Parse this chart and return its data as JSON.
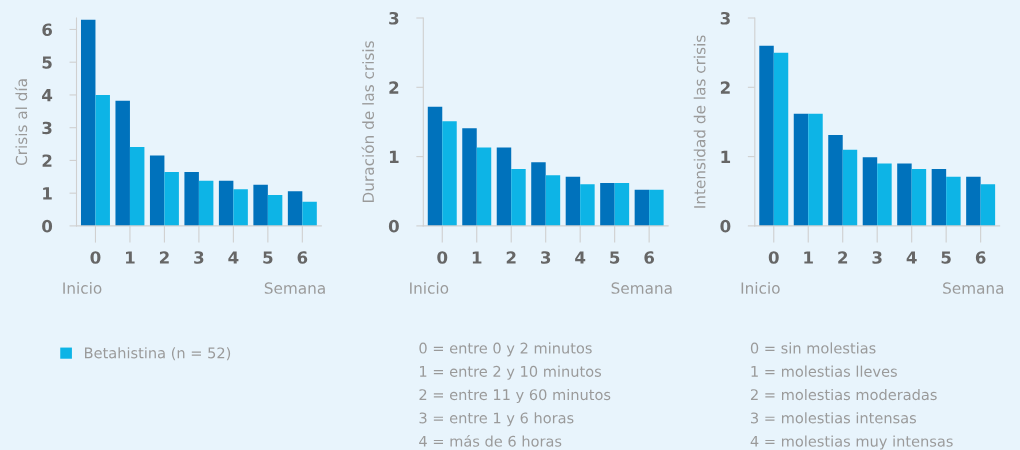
{
  "chart_data": [
    {
      "type": "bar",
      "ylabel": "Crisis al día",
      "xlabel": "Semana",
      "categories": [
        "0",
        "1",
        "2",
        "3",
        "4",
        "5",
        "6"
      ],
      "series": [
        {
          "color": "#0072bc",
          "values": [
            6.3,
            3.82,
            2.15,
            1.65,
            1.38,
            1.26,
            1.06
          ]
        },
        {
          "name": "Betahistina (n = 52)",
          "color": "#0db4e6",
          "values": [
            4.0,
            2.41,
            1.65,
            1.38,
            1.12,
            0.94,
            0.74
          ]
        }
      ],
      "ylim": [
        0,
        6.35
      ],
      "yticks": [
        0,
        1,
        2,
        3,
        4,
        5,
        6
      ],
      "legend": "bottom",
      "annotations": [
        "Inicio"
      ]
    },
    {
      "type": "bar",
      "ylabel": "Duración de las crisis",
      "xlabel": "Semana",
      "categories": [
        "0",
        "1",
        "2",
        "3",
        "4",
        "5",
        "6"
      ],
      "series": [
        {
          "color": "#0072bc",
          "values": [
            1.72,
            1.41,
            1.13,
            0.92,
            0.71,
            0.62,
            0.52
          ]
        },
        {
          "color": "#0db4e6",
          "values": [
            1.51,
            1.13,
            0.82,
            0.73,
            0.6,
            0.62,
            0.52
          ]
        }
      ],
      "ylim": [
        0,
        3
      ],
      "yticks": [
        0,
        1,
        2,
        3
      ],
      "annotations": [
        "Inicio",
        "0 = entre 0 y 2 minutos",
        "1 = entre 2 y 10 minutos",
        "2 = entre 11 y 60 minutos",
        "3 = entre 1 y 6 horas",
        "4 = más de 6 horas"
      ]
    },
    {
      "type": "bar",
      "ylabel": "Intensidad de las crisis",
      "xlabel": "Semana",
      "categories": [
        "0",
        "1",
        "2",
        "3",
        "4",
        "5",
        "6"
      ],
      "series": [
        {
          "color": "#0072bc",
          "values": [
            2.6,
            1.62,
            1.31,
            0.99,
            0.9,
            0.82,
            0.71
          ]
        },
        {
          "color": "#0db4e6",
          "values": [
            2.5,
            1.62,
            1.1,
            0.9,
            0.82,
            0.71,
            0.6
          ]
        }
      ],
      "ylim": [
        0,
        3
      ],
      "yticks": [
        0,
        1,
        2,
        3
      ],
      "annotations": [
        "Inicio",
        "0 = sin molestias",
        "1 = molestias lleves",
        "2 = molestias moderadas",
        "3 = molestias intensas",
        "4 = molestias muy intensas"
      ]
    }
  ]
}
